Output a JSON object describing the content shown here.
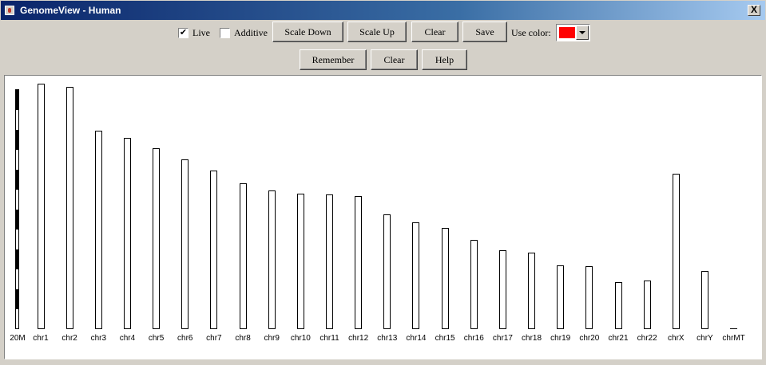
{
  "window": {
    "title": "GenomeView - Human",
    "close_label": "X"
  },
  "toolbar": {
    "live_label": "Live",
    "live_checked": "✔",
    "additive_label": "Additive",
    "additive_checked": "",
    "scale_down_label": "Scale Down",
    "scale_up_label": "Scale Up",
    "clear_label": "Clear",
    "save_label": "Save",
    "use_color_label": "Use color:",
    "use_color_value": "#ff0000",
    "remember_label": "Remember",
    "clear2_label": "Clear",
    "help_label": "Help"
  },
  "genome": {
    "scale_label": "20M",
    "chromosomes": [
      {
        "name": "chr1",
        "length": 1.0
      },
      {
        "name": "chr2",
        "length": 0.987
      },
      {
        "name": "chr3",
        "length": 0.81
      },
      {
        "name": "chr4",
        "length": 0.778
      },
      {
        "name": "chr5",
        "length": 0.736
      },
      {
        "name": "chr6",
        "length": 0.693
      },
      {
        "name": "chr7",
        "length": 0.645
      },
      {
        "name": "chr8",
        "length": 0.593
      },
      {
        "name": "chr9",
        "length": 0.564
      },
      {
        "name": "chr10",
        "length": 0.551
      },
      {
        "name": "chr11",
        "length": 0.548
      },
      {
        "name": "chr12",
        "length": 0.541
      },
      {
        "name": "chr13",
        "length": 0.466
      },
      {
        "name": "chr14",
        "length": 0.434
      },
      {
        "name": "chr15",
        "length": 0.411
      },
      {
        "name": "chr16",
        "length": 0.365
      },
      {
        "name": "chr17",
        "length": 0.323
      },
      {
        "name": "chr18",
        "length": 0.313
      },
      {
        "name": "chr19",
        "length": 0.261
      },
      {
        "name": "chr20",
        "length": 0.257
      },
      {
        "name": "chr21",
        "length": 0.192
      },
      {
        "name": "chr22",
        "length": 0.199
      },
      {
        "name": "chrX",
        "length": 0.632
      },
      {
        "name": "chrY",
        "length": 0.238
      },
      {
        "name": "chrMT",
        "length": 0.0
      }
    ]
  }
}
